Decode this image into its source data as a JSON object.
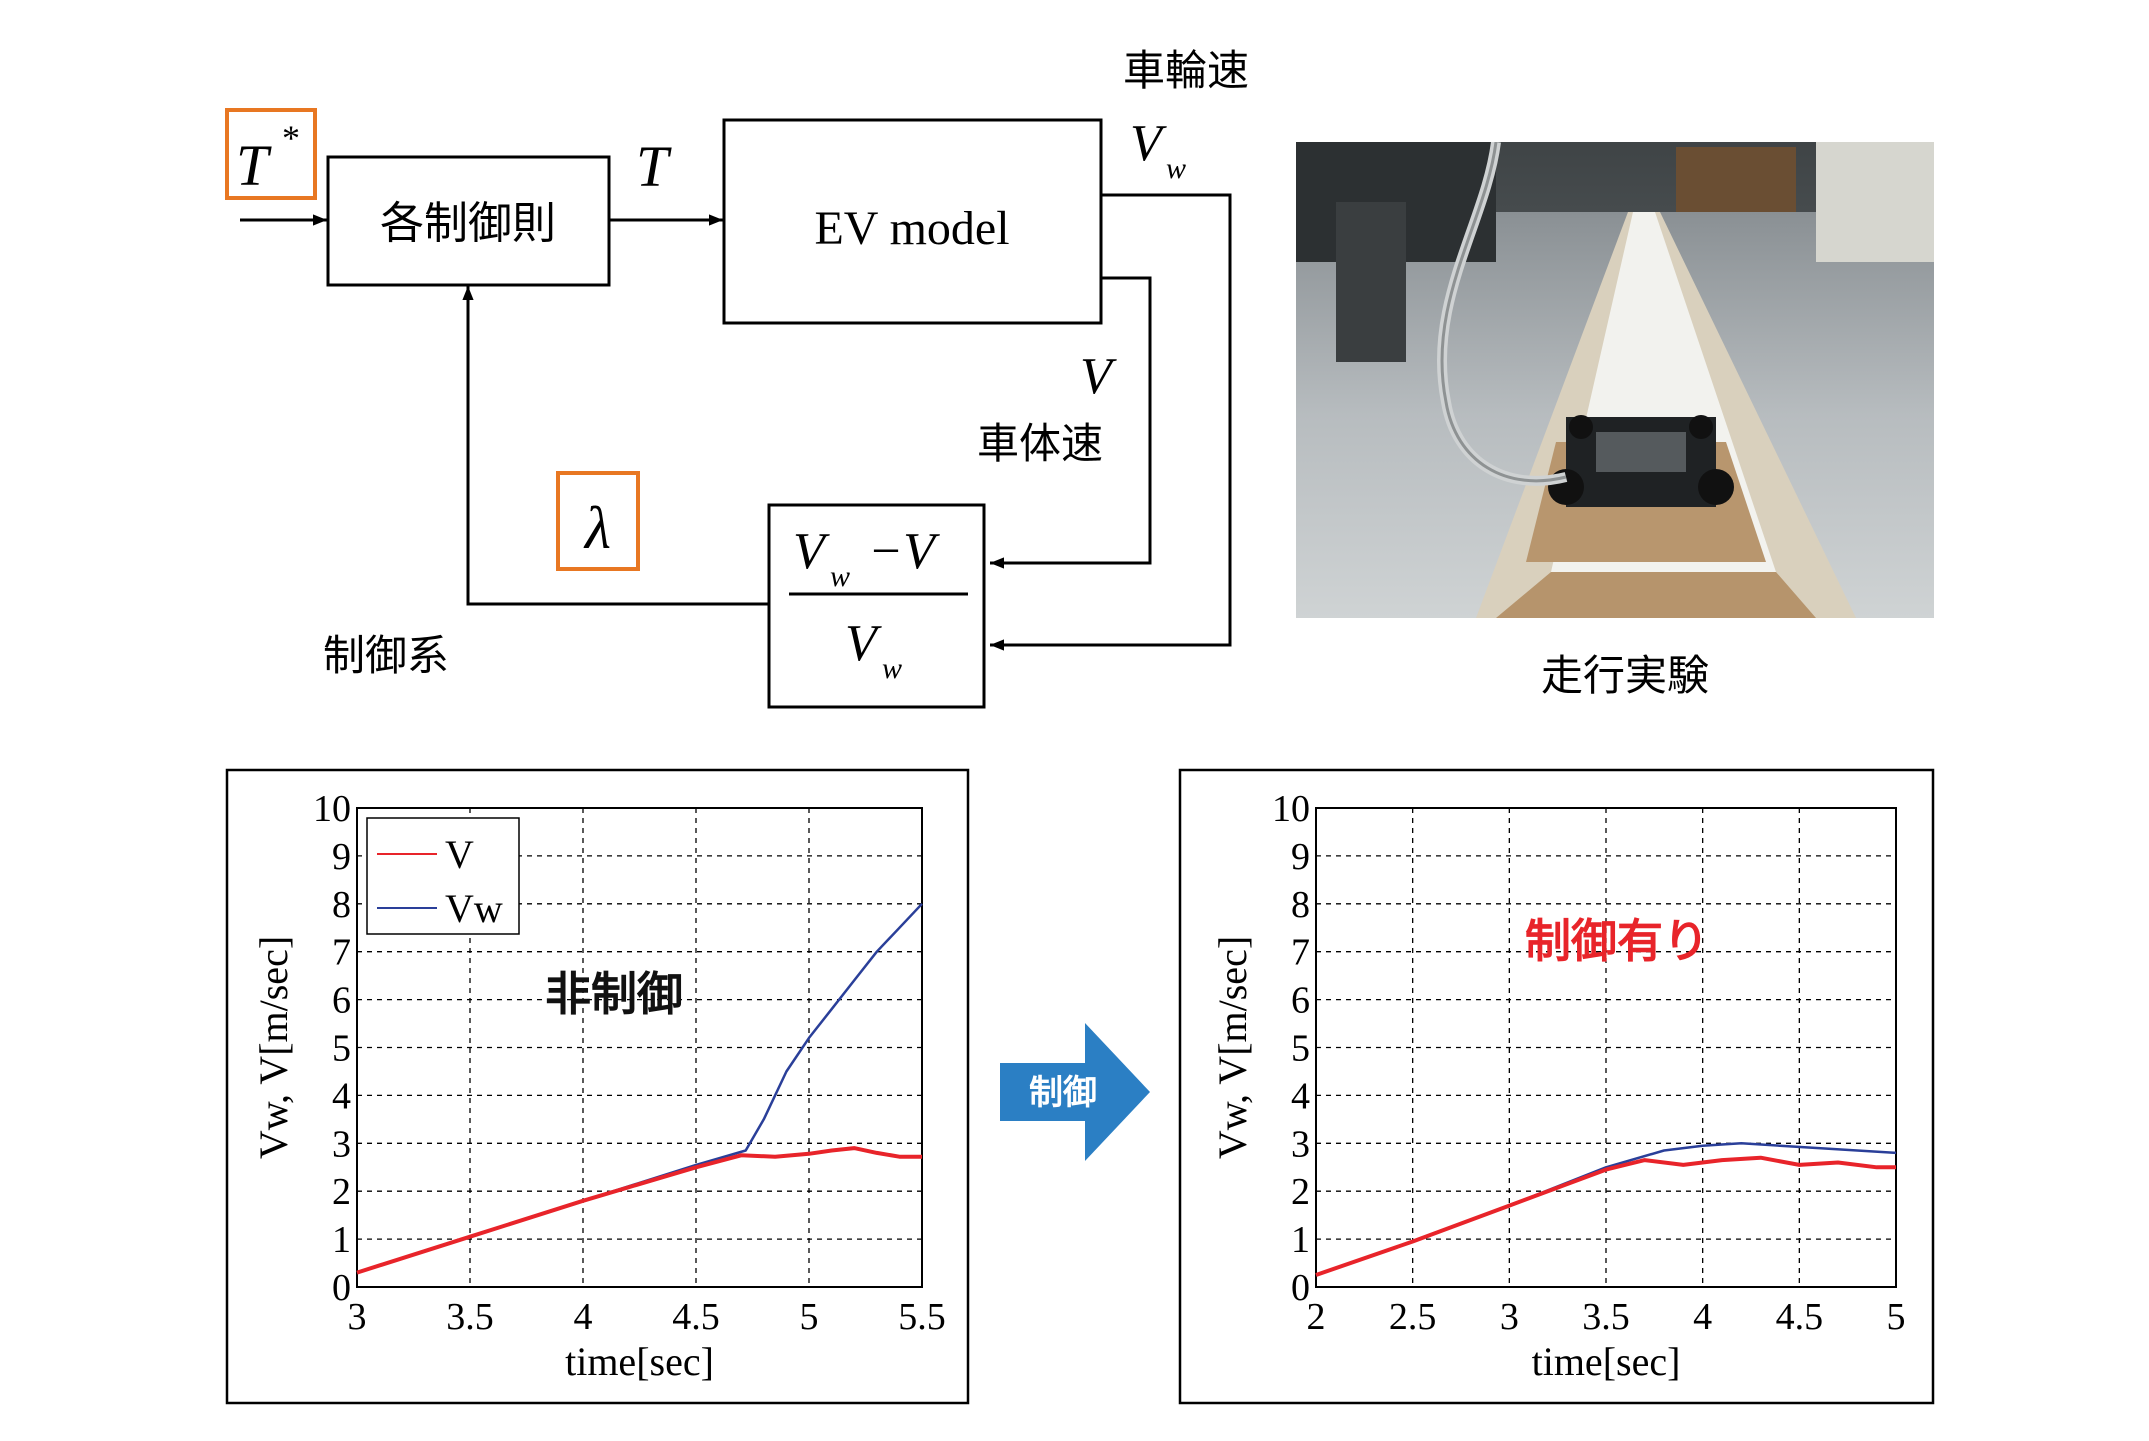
{
  "block_diagram": {
    "input_symbol": "T",
    "input_superscript": "*",
    "controller_label": "各制御則",
    "torque_symbol": "T",
    "plant_label": "EV model",
    "wheel_speed_caption": "車輪速",
    "wheel_speed_symbol": "V",
    "wheel_speed_subscript": "w",
    "body_speed_symbol": "V",
    "body_speed_caption": "車体速",
    "slip_symbol": "λ",
    "slip_numerator_a": "V",
    "slip_numerator_sub": "w",
    "slip_numerator_b": "−V",
    "slip_denominator": "V",
    "slip_denominator_sub": "w",
    "system_caption": "制御系"
  },
  "photo": {
    "caption": "走行実験",
    "icon": "running-test-photo"
  },
  "arrow_label": "制御",
  "colors": {
    "highlight": "#e87722",
    "accent_arrow": "#2b7fc4",
    "v_line": "#e8242a",
    "vw_line": "#2a3f99",
    "annotation_red": "#e8242a"
  },
  "chart_data": [
    {
      "type": "line",
      "title": "",
      "annotation": "非制御",
      "xlabel": "time[sec]",
      "ylabel": "Vw, V[m/sec]",
      "xlim": [
        3,
        5.5
      ],
      "ylim": [
        0,
        10
      ],
      "xticks": [
        "3",
        "3.5",
        "4",
        "4.5",
        "5",
        "5.5"
      ],
      "yticks": [
        "0",
        "1",
        "2",
        "3",
        "4",
        "5",
        "6",
        "7",
        "8",
        "9",
        "10"
      ],
      "grid": true,
      "legend": "top-left",
      "series": [
        {
          "name": "V",
          "color": "#e8242a",
          "x": [
            3,
            3.5,
            4,
            4.5,
            4.7,
            4.85,
            5.0,
            5.1,
            5.2,
            5.3,
            5.4,
            5.5
          ],
          "y": [
            0.3,
            1.05,
            1.8,
            2.5,
            2.75,
            2.72,
            2.78,
            2.85,
            2.9,
            2.8,
            2.72,
            2.72
          ]
        },
        {
          "name": "Vw",
          "color": "#2a3f99",
          "x": [
            3,
            3.5,
            4,
            4.5,
            4.72,
            4.8,
            4.9,
            5.0,
            5.1,
            5.2,
            5.3,
            5.4,
            5.5
          ],
          "y": [
            0.3,
            1.05,
            1.8,
            2.55,
            2.85,
            3.5,
            4.5,
            5.2,
            5.8,
            6.4,
            7.0,
            7.5,
            8.0
          ]
        }
      ]
    },
    {
      "type": "line",
      "title": "",
      "annotation": "制御有り",
      "xlabel": "time[sec]",
      "ylabel": "Vw, V[m/sec]",
      "xlim": [
        2,
        5
      ],
      "ylim": [
        0,
        10
      ],
      "xticks": [
        "2",
        "2.5",
        "3",
        "3.5",
        "4",
        "4.5",
        "5"
      ],
      "yticks": [
        "0",
        "1",
        "2",
        "3",
        "4",
        "5",
        "6",
        "7",
        "8",
        "9",
        "10"
      ],
      "grid": true,
      "series": [
        {
          "name": "V",
          "color": "#e8242a",
          "x": [
            2,
            2.5,
            3,
            3.5,
            3.7,
            3.9,
            4.1,
            4.3,
            4.5,
            4.7,
            4.9,
            5.0
          ],
          "y": [
            0.25,
            0.95,
            1.7,
            2.45,
            2.65,
            2.55,
            2.65,
            2.7,
            2.55,
            2.6,
            2.5,
            2.5
          ]
        },
        {
          "name": "Vw",
          "color": "#2a3f99",
          "x": [
            2,
            2.5,
            3,
            3.5,
            3.8,
            4.0,
            4.2,
            4.4,
            4.6,
            4.8,
            5.0
          ],
          "y": [
            0.25,
            0.95,
            1.7,
            2.5,
            2.85,
            2.95,
            3.0,
            2.95,
            2.9,
            2.85,
            2.8
          ]
        }
      ]
    }
  ]
}
